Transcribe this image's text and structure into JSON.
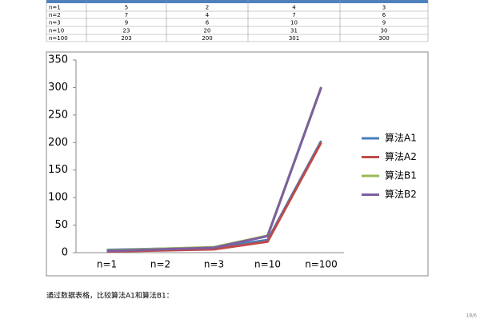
{
  "table": {
    "rows": [
      [
        "n=1",
        "5",
        "2",
        "4",
        "3"
      ],
      [
        "n=2",
        "7",
        "4",
        "7",
        "6"
      ],
      [
        "n=3",
        "9",
        "6",
        "10",
        "9"
      ],
      [
        "n=10",
        "23",
        "20",
        "31",
        "30"
      ],
      [
        "n=100",
        "203",
        "200",
        "301",
        "300"
      ]
    ]
  },
  "chart_data": {
    "type": "line",
    "categories": [
      "n=1",
      "n=2",
      "n=3",
      "n=10",
      "n=100"
    ],
    "series": [
      {
        "name": "算法A1",
        "color": "#4a7ebb",
        "values": [
          5,
          7,
          9,
          23,
          203
        ]
      },
      {
        "name": "算法A2",
        "color": "#be4b48",
        "values": [
          2,
          4,
          6,
          20,
          200
        ]
      },
      {
        "name": "算法B1",
        "color": "#98b954",
        "values": [
          4,
          7,
          10,
          31,
          301
        ]
      },
      {
        "name": "算法B2",
        "color": "#7d5fa0",
        "values": [
          3,
          6,
          9,
          30,
          300
        ]
      }
    ],
    "ylim": [
      0,
      350
    ],
    "yticks": [
      0,
      50,
      100,
      150,
      200,
      250,
      300,
      350
    ],
    "grid": false,
    "legend": "right"
  },
  "text": {
    "paragraph": "通过数据表格，比较算法A1和算法B1：",
    "page_number": "18/6"
  }
}
